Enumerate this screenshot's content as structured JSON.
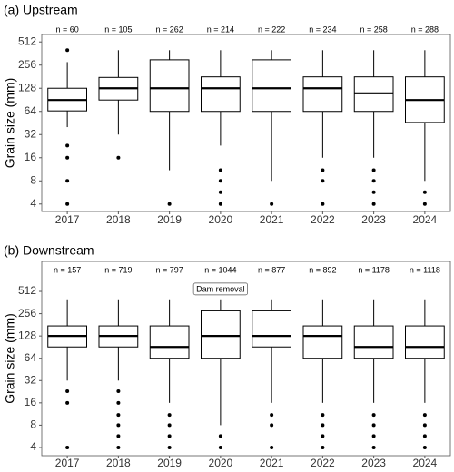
{
  "chart_data": [
    {
      "type": "box",
      "title": "(a) Upstream",
      "ylabel": "Grain size (mm)",
      "ylog": true,
      "log_base": 2,
      "ylim": [
        3.2,
        640
      ],
      "yticks": [
        4,
        8,
        16,
        32,
        64,
        128,
        256,
        512
      ],
      "color": "#000000",
      "fill": "#ffffff",
      "categories": [
        "2017",
        "2018",
        "2019",
        "2020",
        "2021",
        "2022",
        "2023",
        "2024"
      ],
      "n_labels": [
        "n = 60",
        "n = 105",
        "n = 262",
        "n = 214",
        "n = 222",
        "n = 234",
        "n = 258",
        "n = 288"
      ],
      "boxes": [
        {
          "whislo": 40,
          "q1": 65,
          "med": 90,
          "q3": 128,
          "whishi": 280,
          "fliers": [
            23,
            16,
            8,
            4,
            400
          ]
        },
        {
          "whislo": 32,
          "q1": 90,
          "med": 128,
          "q3": 177,
          "whishi": 400,
          "fliers": [
            16
          ]
        },
        {
          "whislo": 11,
          "q1": 64,
          "med": 128,
          "q3": 300,
          "whishi": 400,
          "fliers": [
            4
          ]
        },
        {
          "whislo": 23,
          "q1": 64,
          "med": 128,
          "q3": 180,
          "whishi": 400,
          "fliers": [
            11,
            8,
            5.7,
            4
          ]
        },
        {
          "whislo": 8,
          "q1": 64,
          "med": 128,
          "q3": 300,
          "whishi": 400,
          "fliers": [
            4
          ]
        },
        {
          "whislo": 16,
          "q1": 64,
          "med": 128,
          "q3": 180,
          "whishi": 400,
          "fliers": [
            11,
            8,
            4
          ]
        },
        {
          "whislo": 16,
          "q1": 64,
          "med": 110,
          "q3": 180,
          "whishi": 400,
          "fliers": [
            11,
            8,
            5.7,
            4
          ]
        },
        {
          "whislo": 8,
          "q1": 46,
          "med": 90,
          "q3": 180,
          "whishi": 400,
          "fliers": [
            5.7,
            4
          ]
        }
      ]
    },
    {
      "type": "box",
      "title": "(b) Downstream",
      "ylabel": "Grain size (mm)",
      "ylog": true,
      "log_base": 2,
      "ylim": [
        3.1,
        1300
      ],
      "yticks": [
        4,
        8,
        16,
        32,
        64,
        128,
        256,
        512
      ],
      "color": "#000000",
      "fill": "#ffffff",
      "categories": [
        "2017",
        "2018",
        "2019",
        "2020",
        "2021",
        "2022",
        "2023",
        "2024"
      ],
      "n_labels": [
        "n = 157",
        "n = 719",
        "n = 797",
        "n = 1044",
        "n = 877",
        "n = 892",
        "n = 1178",
        "n = 1118"
      ],
      "annotation": {
        "text": "Dam removal",
        "category": "2020"
      },
      "boxes": [
        {
          "whislo": 32,
          "q1": 91,
          "med": 128,
          "q3": 175,
          "whishi": 400,
          "fliers": [
            23,
            16,
            4
          ]
        },
        {
          "whislo": 32,
          "q1": 91,
          "med": 128,
          "q3": 175,
          "whishi": 400,
          "fliers": [
            23,
            16,
            11,
            8,
            5.7,
            4
          ]
        },
        {
          "whislo": 16,
          "q1": 64,
          "med": 91,
          "q3": 175,
          "whishi": 400,
          "fliers": [
            11,
            8,
            5.7,
            4
          ]
        },
        {
          "whislo": 8,
          "q1": 64,
          "med": 128,
          "q3": 280,
          "whishi": 400,
          "fliers": [
            5.7,
            4
          ]
        },
        {
          "whislo": 16,
          "q1": 91,
          "med": 128,
          "q3": 280,
          "whishi": 400,
          "fliers": [
            11,
            8,
            4
          ]
        },
        {
          "whislo": 16,
          "q1": 64,
          "med": 128,
          "q3": 175,
          "whishi": 400,
          "fliers": [
            11,
            8,
            5.7,
            4
          ]
        },
        {
          "whislo": 16,
          "q1": 64,
          "med": 91,
          "q3": 175,
          "whishi": 400,
          "fliers": [
            11,
            8,
            5.7,
            4
          ]
        },
        {
          "whislo": 16,
          "q1": 64,
          "med": 91,
          "q3": 175,
          "whishi": 400,
          "fliers": [
            11,
            8,
            5.7,
            4
          ]
        }
      ]
    }
  ]
}
